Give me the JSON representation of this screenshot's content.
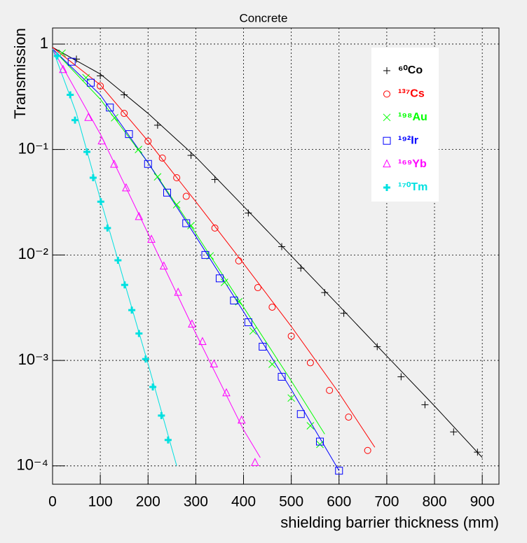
{
  "chart_data": {
    "type": "scatter",
    "title": "Concrete",
    "x_label": "shielding barrier thickness (mm)",
    "y_label": "Transmission",
    "xlim": [
      0,
      935
    ],
    "ylim": [
      6.7e-05,
      1.42
    ],
    "log_y": true,
    "grid": true,
    "legend": "top-right",
    "xticks": [
      0,
      100,
      200,
      300,
      400,
      500,
      600,
      700,
      800,
      900
    ],
    "yticks": [
      {
        "value": 0.0001,
        "label": "10⁻⁴"
      },
      {
        "value": 0.001,
        "label": "10⁻³"
      },
      {
        "value": 0.01,
        "label": "10⁻²"
      },
      {
        "value": 0.1,
        "label": "10⁻¹"
      },
      1
    ],
    "series": [
      {
        "name": "⁶⁰Co",
        "color": "#000000",
        "marker": "plus",
        "x": [
          50,
          100,
          150,
          220,
          290,
          340,
          410,
          480,
          520,
          570,
          610,
          680,
          730,
          780,
          840,
          890
        ],
        "values": [
          0.72,
          0.5,
          0.33,
          0.17,
          0.088,
          0.052,
          0.025,
          0.012,
          0.0075,
          0.0044,
          0.0028,
          0.00135,
          0.0007,
          0.00038,
          0.00021,
          0.000135
        ],
        "fit_x": [
          0,
          100,
          200,
          300,
          400,
          500,
          600,
          700,
          800,
          900
        ],
        "fit_values": [
          0.93,
          0.52,
          0.22,
          0.085,
          0.029,
          0.0098,
          0.0033,
          0.0011,
          0.00037,
          0.00012
        ]
      },
      {
        "name": "¹³⁷Cs",
        "color": "#ff0000",
        "marker": "circle",
        "x": [
          100,
          150,
          200,
          230,
          260,
          280,
          340,
          390,
          430,
          460,
          500,
          540,
          580,
          620,
          660
        ],
        "values": [
          0.4,
          0.22,
          0.12,
          0.083,
          0.054,
          0.036,
          0.018,
          0.0088,
          0.0049,
          0.0032,
          0.0017,
          0.00095,
          0.00052,
          0.00029,
          0.00014
        ],
        "fit_x": [
          0,
          100,
          200,
          300,
          400,
          500,
          600,
          675
        ],
        "fit_values": [
          0.93,
          0.41,
          0.12,
          0.032,
          0.0083,
          0.0021,
          0.00049,
          0.00015
        ]
      },
      {
        "name": "¹⁹⁸Au",
        "color": "#00ff00",
        "marker": "x",
        "x": [
          20,
          70,
          130,
          180,
          220,
          260,
          290,
          330,
          360,
          390,
          420,
          460,
          500,
          540,
          560
        ],
        "values": [
          0.82,
          0.48,
          0.2,
          0.1,
          0.055,
          0.03,
          0.019,
          0.0098,
          0.0055,
          0.0036,
          0.0019,
          0.00092,
          0.00044,
          0.00024,
          0.00016
        ],
        "fit_x": [
          0,
          100,
          200,
          300,
          400,
          500,
          570
        ],
        "fit_values": [
          0.9,
          0.3,
          0.075,
          0.016,
          0.0032,
          0.00064,
          0.0002
        ]
      },
      {
        "name": "¹⁹²Ir",
        "color": "#0000ff",
        "marker": "square",
        "x": [
          40,
          80,
          120,
          160,
          200,
          240,
          280,
          320,
          350,
          380,
          410,
          440,
          480,
          520,
          560,
          600
        ],
        "values": [
          0.68,
          0.43,
          0.25,
          0.14,
          0.073,
          0.039,
          0.02,
          0.01,
          0.006,
          0.0037,
          0.0023,
          0.00135,
          0.0007,
          0.00031,
          0.00017,
          9e-05
        ],
        "fit_x": [
          0,
          100,
          200,
          300,
          400,
          500,
          600
        ],
        "fit_values": [
          0.9,
          0.33,
          0.075,
          0.015,
          0.0029,
          0.00053,
          9e-05
        ]
      },
      {
        "name": "¹⁶⁹Yb",
        "color": "#ff00ff",
        "marker": "triangle",
        "x": [
          22,
          75,
          103,
          129,
          154,
          181,
          207,
          233,
          263,
          292,
          314,
          338,
          364,
          396,
          424
        ],
        "values": [
          0.57,
          0.2,
          0.12,
          0.072,
          0.043,
          0.023,
          0.014,
          0.0078,
          0.0044,
          0.0022,
          0.0015,
          0.00092,
          0.00049,
          0.00027,
          0.000107
        ],
        "fit_x": [
          0,
          100,
          200,
          300,
          400,
          435
        ],
        "fit_values": [
          0.9,
          0.14,
          0.016,
          0.0018,
          0.00022,
          0.00012
        ]
      },
      {
        "name": "¹⁷⁰Tm",
        "color": "#00e0e0",
        "marker": "cross",
        "x": [
          10,
          37,
          47,
          72,
          85,
          101,
          115,
          137,
          151,
          166,
          181,
          195,
          210,
          228,
          242
        ],
        "values": [
          0.77,
          0.33,
          0.19,
          0.095,
          0.054,
          0.032,
          0.018,
          0.0089,
          0.0052,
          0.003,
          0.0018,
          0.00103,
          0.00056,
          0.0003,
          0.000176
        ],
        "fit_x": [
          0,
          50,
          100,
          150,
          200,
          260
        ],
        "fit_values": [
          0.9,
          0.22,
          0.034,
          0.0056,
          0.00093,
          0.0001
        ]
      }
    ]
  }
}
